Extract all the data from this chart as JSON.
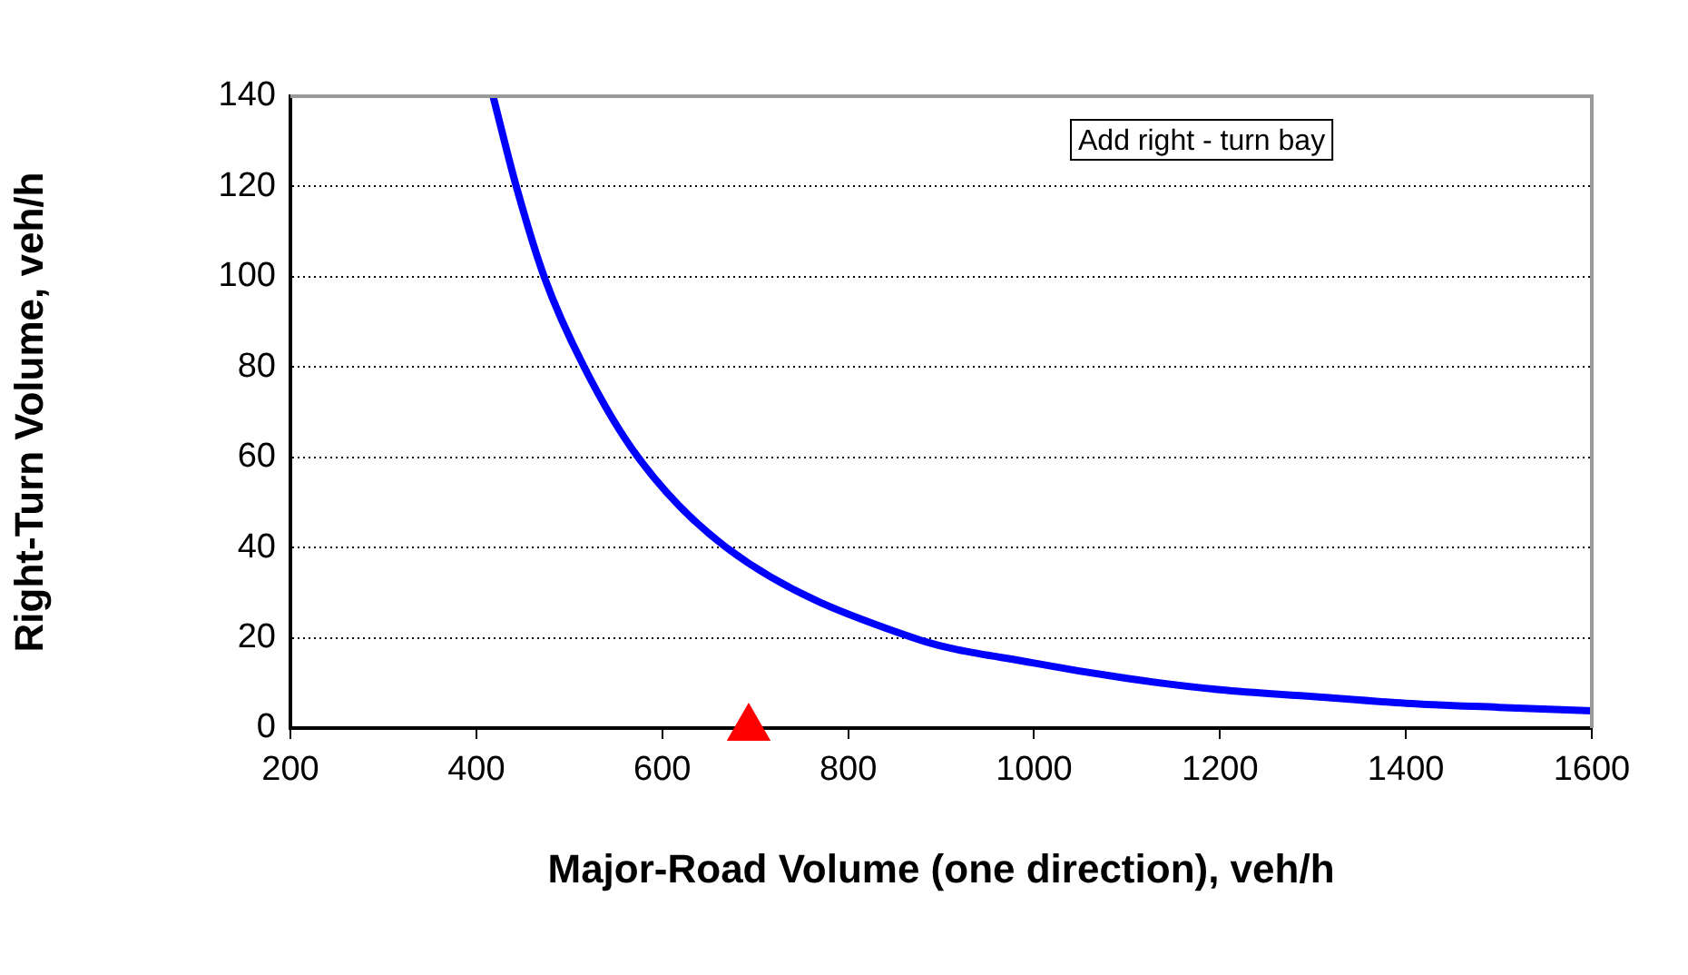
{
  "chart_data": {
    "type": "line",
    "xlabel": "Major-Road Volume (one direction), veh/h",
    "ylabel": "Right-Turn Volume, veh/h",
    "annotations": [
      "Add right - turn bay"
    ],
    "series": [
      {
        "type": "line",
        "color": "#0000ff",
        "marker": "none",
        "x": [
          418,
          443,
          473,
          516,
          574,
          669,
          870,
          1000,
          1100,
          1200,
          1300,
          1400,
          1500,
          1600
        ],
        "values": [
          140,
          120,
          100,
          80,
          60,
          40,
          20,
          14.4,
          11,
          8.5,
          7,
          5.5,
          4.6,
          3.8
        ]
      },
      {
        "type": "scatter",
        "color": "#ff0000",
        "marker": "triangle",
        "x": [
          693
        ],
        "values": [
          0
        ]
      }
    ],
    "xlim": [
      200,
      1600
    ],
    "xticks": [
      200,
      400,
      600,
      800,
      1000,
      1200,
      1400,
      1600
    ],
    "ylim": [
      0,
      140
    ],
    "yticks": [
      0,
      20,
      40,
      60,
      80,
      100,
      120,
      140
    ],
    "grid": "y",
    "legend": false
  }
}
